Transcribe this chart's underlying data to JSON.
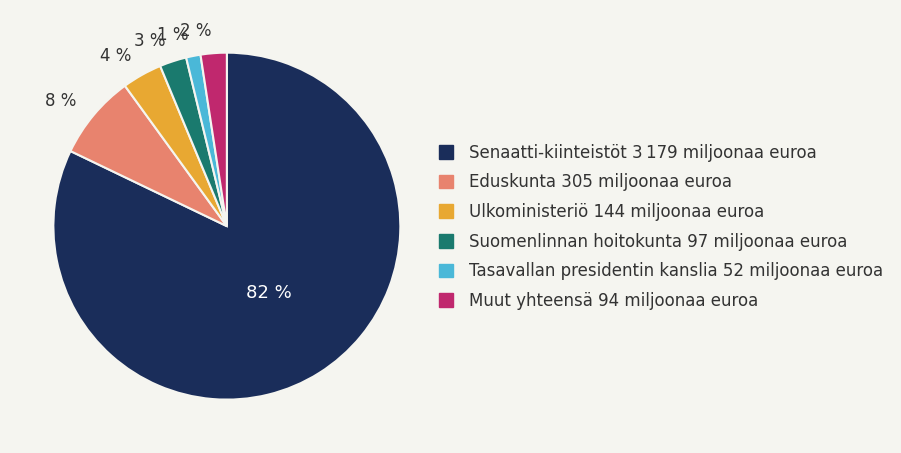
{
  "labels": [
    "Senaatti-kiinteistöt 3 179 miljoonaa euroa",
    "Eduskunta 305 miljoonaa euroa",
    "Ulkoministeriö 144 miljoonaa euroa",
    "Suomenlinnan hoitokunta 97 miljoonaa euroa",
    "Tasavallan presidentin kanslia 52 miljoonaa euroa",
    "Muut yhteensä 94 miljoonaa euroa"
  ],
  "values": [
    3179,
    305,
    144,
    97,
    52,
    94
  ],
  "colors": [
    "#1a2d5a",
    "#e8836e",
    "#e8a832",
    "#1a7a6e",
    "#4ab8d8",
    "#c0286e"
  ],
  "pct_labels": [
    "82 %",
    "8 %",
    "4 %",
    "3 %",
    "1 %",
    "2 %"
  ],
  "background_color": "#f5f5f0",
  "text_color": "#333333",
  "legend_fontsize": 12,
  "pct_fontsize": 13
}
